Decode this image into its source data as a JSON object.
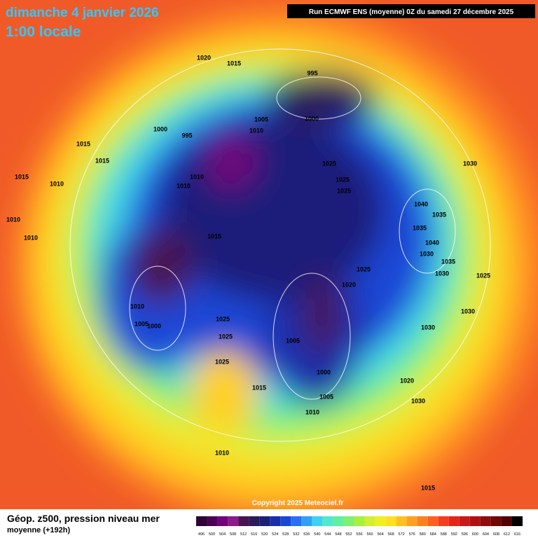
{
  "header": {
    "title": "dimanche 4 janvier 2026",
    "subtitle": "1:00 locale",
    "run": "Run ECMWF ENS (moyenne) 0Z du samedi 27 décembre 2025"
  },
  "footer": {
    "copyright": "Copyright 2025 Meteociel.fr",
    "legend_title": "Géop. z500, pression niveau mer",
    "legend_subtitle": "moyenne  (+192h)"
  },
  "colorbar": {
    "ticks": [
      496,
      500,
      504,
      508,
      512,
      516,
      520,
      524,
      528,
      532,
      536,
      540,
      544,
      548,
      552,
      556,
      560,
      564,
      568,
      572,
      576,
      580,
      584,
      588,
      592,
      596,
      600,
      604,
      608,
      612,
      616
    ],
    "colors": [
      "#2d0036",
      "#4a0052",
      "#73007a",
      "#8c1a8c",
      "#4a1450",
      "#2a1a5a",
      "#1a1f7a",
      "#1a2fa8",
      "#1a47d6",
      "#2a6ff0",
      "#30a0f5",
      "#40d0f0",
      "#50e8d0",
      "#60f0a0",
      "#80f070",
      "#a8f040",
      "#d0f030",
      "#f0f020",
      "#ffe020",
      "#ffc020",
      "#ffa020",
      "#ff8020",
      "#ff6020",
      "#f04020",
      "#e02818",
      "#c81818",
      "#b01010",
      "#900c0c",
      "#700808",
      "#500404",
      "#000000"
    ]
  },
  "pressure_labels": [
    "1020",
    "1015",
    "995",
    "1005",
    "1000",
    "1010",
    "1000",
    "995",
    "1015",
    "1015",
    "1025",
    "1030",
    "1025",
    "1015",
    "1010",
    "1010",
    "1010",
    "1025",
    "1040",
    "1035",
    "1010",
    "1035",
    "1010",
    "1015",
    "1040",
    "1030",
    "1035",
    "1025",
    "1030",
    "1025",
    "1020",
    "1010",
    "1030",
    "1025",
    "1005",
    "1000",
    "1030",
    "1025",
    "1005",
    "1025",
    "1000",
    "1020",
    "1015",
    "1005",
    "1030",
    "1010",
    "1010",
    "1015"
  ]
}
